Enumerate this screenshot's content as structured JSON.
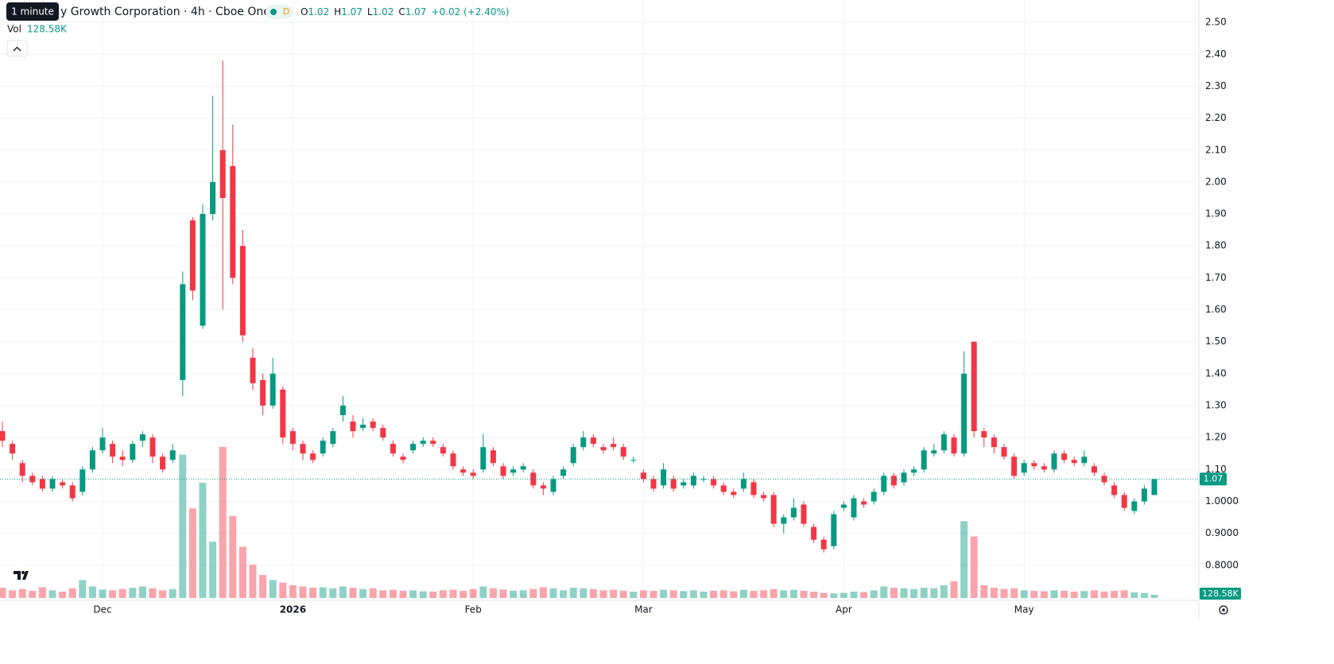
{
  "chart_data": {
    "type": "candlestick",
    "title": "y Growth Corporation · 4h · Cboe One",
    "tooltip": "1 minute",
    "badge": "D",
    "legend": {
      "o_label": "O",
      "o": 1.02,
      "h_label": "H",
      "h": 1.07,
      "l_label": "L",
      "l": 1.02,
      "c_label": "C",
      "c": 1.07,
      "change": "+0.02 (+2.40%)"
    },
    "volume_label": "Vol",
    "volume_text": "128.58K",
    "last_price": 1.07,
    "volume_tag": "128.58K",
    "up_color": "#089981",
    "down_color": "#f23645",
    "grid": true,
    "ylim": [
      0.69,
      2.57
    ],
    "yticks": [
      {
        "value": 2.5,
        "label": "2.50"
      },
      {
        "value": 2.4,
        "label": "2.40"
      },
      {
        "value": 2.3,
        "label": "2.30"
      },
      {
        "value": 2.2,
        "label": "2.20"
      },
      {
        "value": 2.1,
        "label": "2.10"
      },
      {
        "value": 2.0,
        "label": "2.00"
      },
      {
        "value": 1.9,
        "label": "1.90"
      },
      {
        "value": 1.8,
        "label": "1.80"
      },
      {
        "value": 1.7,
        "label": "1.70"
      },
      {
        "value": 1.6,
        "label": "1.60"
      },
      {
        "value": 1.5,
        "label": "1.50"
      },
      {
        "value": 1.4,
        "label": "1.40"
      },
      {
        "value": 1.3,
        "label": "1.30"
      },
      {
        "value": 1.2,
        "label": "1.20"
      },
      {
        "value": 1.1,
        "label": "1.10"
      },
      {
        "value": 1.0,
        "label": "1.0000"
      },
      {
        "value": 0.9,
        "label": "0.9000"
      },
      {
        "value": 0.8,
        "label": "0.8000"
      }
    ],
    "categories": [
      null,
      null,
      null,
      null,
      null,
      null,
      null,
      null,
      null,
      null,
      "Dec",
      null,
      null,
      null,
      null,
      null,
      null,
      null,
      null,
      null,
      null,
      null,
      null,
      null,
      null,
      null,
      null,
      null,
      null,
      "2026",
      null,
      null,
      null,
      null,
      null,
      null,
      null,
      null,
      null,
      null,
      null,
      null,
      null,
      null,
      null,
      null,
      null,
      "Feb",
      null,
      null,
      null,
      null,
      null,
      null,
      null,
      null,
      null,
      null,
      null,
      null,
      null,
      null,
      null,
      null,
      "Mar",
      null,
      null,
      null,
      null,
      null,
      null,
      null,
      null,
      null,
      null,
      null,
      null,
      null,
      null,
      null,
      null,
      null,
      null,
      null,
      "Apr",
      null,
      null,
      null,
      null,
      null,
      null,
      null,
      null,
      null,
      null,
      null,
      null,
      null,
      null,
      null,
      null,
      null,
      "May",
      null,
      null,
      null,
      null,
      null,
      null,
      null,
      null,
      null,
      null,
      null,
      null,
      null
    ],
    "open": [
      1.22,
      1.18,
      1.12,
      1.08,
      1.07,
      1.04,
      1.06,
      1.05,
      1.03,
      1.1,
      1.16,
      1.18,
      1.14,
      1.13,
      1.19,
      1.2,
      1.14,
      1.13,
      1.38,
      1.88,
      1.55,
      1.9,
      2.1,
      2.05,
      1.8,
      1.45,
      1.38,
      1.3,
      1.35,
      1.22,
      1.18,
      1.15,
      1.15,
      1.18,
      1.27,
      1.25,
      1.23,
      1.25,
      1.23,
      1.18,
      1.14,
      1.16,
      1.18,
      1.19,
      1.17,
      1.15,
      1.1,
      1.09,
      1.1,
      1.16,
      1.11,
      1.09,
      1.1,
      1.09,
      1.05,
      1.03,
      1.08,
      1.12,
      1.17,
      1.2,
      1.17,
      1.18,
      1.17,
      1.13,
      1.09,
      1.07,
      1.05,
      1.07,
      1.05,
      1.05,
      1.07,
      1.07,
      1.05,
      1.03,
      1.04,
      1.06,
      1.02,
      1.02,
      0.93,
      0.95,
      0.99,
      0.92,
      0.88,
      0.86,
      0.98,
      0.95,
      1.0,
      1.0,
      1.03,
      1.08,
      1.06,
      1.09,
      1.1,
      1.15,
      1.16,
      1.2,
      1.15,
      1.5,
      1.22,
      1.2,
      1.17,
      1.14,
      1.09,
      1.12,
      1.11,
      1.1,
      1.15,
      1.13,
      1.12,
      1.11,
      1.08,
      1.05,
      1.02,
      0.97,
      1.0,
      1.02
    ],
    "high": [
      1.25,
      1.19,
      1.13,
      1.09,
      1.08,
      1.08,
      1.07,
      1.06,
      1.11,
      1.17,
      1.23,
      1.19,
      1.16,
      1.19,
      1.22,
      1.21,
      1.15,
      1.18,
      1.72,
      1.89,
      1.93,
      2.27,
      2.38,
      2.18,
      1.85,
      1.48,
      1.4,
      1.45,
      1.36,
      1.23,
      1.19,
      1.16,
      1.2,
      1.23,
      1.33,
      1.27,
      1.26,
      1.26,
      1.24,
      1.19,
      1.15,
      1.19,
      1.2,
      1.2,
      1.18,
      1.16,
      1.11,
      1.1,
      1.21,
      1.17,
      1.12,
      1.11,
      1.12,
      1.1,
      1.06,
      1.08,
      1.11,
      1.18,
      1.22,
      1.21,
      1.18,
      1.2,
      1.18,
      1.14,
      1.1,
      1.08,
      1.12,
      1.08,
      1.07,
      1.09,
      1.08,
      1.08,
      1.06,
      1.04,
      1.09,
      1.07,
      1.03,
      1.03,
      0.96,
      1.01,
      1.0,
      0.93,
      0.89,
      0.97,
      1.0,
      1.02,
      1.01,
      1.04,
      1.09,
      1.09,
      1.1,
      1.11,
      1.17,
      1.18,
      1.22,
      1.21,
      1.47,
      1.5,
      1.23,
      1.21,
      1.18,
      1.15,
      1.13,
      1.13,
      1.12,
      1.16,
      1.16,
      1.14,
      1.16,
      1.12,
      1.09,
      1.06,
      1.03,
      1.01,
      1.05,
      1.07
    ],
    "low": [
      1.17,
      1.13,
      1.06,
      1.05,
      1.03,
      1.03,
      1.04,
      1.0,
      1.02,
      1.09,
      1.15,
      1.12,
      1.11,
      1.12,
      1.17,
      1.12,
      1.09,
      1.12,
      1.33,
      1.63,
      1.54,
      1.88,
      1.6,
      1.68,
      1.5,
      1.35,
      1.27,
      1.29,
      1.18,
      1.16,
      1.13,
      1.12,
      1.14,
      1.17,
      1.25,
      1.2,
      1.22,
      1.22,
      1.19,
      1.14,
      1.12,
      1.15,
      1.17,
      1.17,
      1.14,
      1.1,
      1.08,
      1.07,
      1.09,
      1.11,
      1.07,
      1.08,
      1.09,
      1.04,
      1.02,
      1.02,
      1.07,
      1.11,
      1.16,
      1.17,
      1.15,
      1.16,
      1.13,
      1.12,
      1.06,
      1.03,
      1.04,
      1.03,
      1.04,
      1.04,
      1.06,
      1.04,
      1.02,
      1.01,
      1.03,
      1.01,
      1.0,
      0.92,
      0.9,
      0.94,
      0.92,
      0.87,
      0.84,
      0.85,
      0.97,
      0.94,
      0.98,
      0.99,
      1.02,
      1.04,
      1.05,
      1.08,
      1.09,
      1.14,
      1.15,
      1.14,
      1.14,
      1.2,
      1.17,
      1.15,
      1.13,
      1.07,
      1.08,
      1.1,
      1.09,
      1.09,
      1.12,
      1.11,
      1.11,
      1.08,
      1.05,
      1.01,
      0.97,
      0.96,
      0.99,
      1.02
    ],
    "close": [
      1.19,
      1.15,
      1.08,
      1.06,
      1.04,
      1.07,
      1.05,
      1.01,
      1.1,
      1.16,
      1.2,
      1.14,
      1.13,
      1.18,
      1.21,
      1.14,
      1.1,
      1.16,
      1.68,
      1.66,
      1.9,
      2.0,
      1.95,
      1.7,
      1.52,
      1.37,
      1.3,
      1.4,
      1.2,
      1.18,
      1.15,
      1.13,
      1.19,
      1.22,
      1.3,
      1.22,
      1.24,
      1.23,
      1.2,
      1.15,
      1.13,
      1.18,
      1.19,
      1.18,
      1.15,
      1.11,
      1.09,
      1.08,
      1.17,
      1.12,
      1.08,
      1.1,
      1.11,
      1.05,
      1.04,
      1.07,
      1.1,
      1.17,
      1.2,
      1.18,
      1.16,
      1.17,
      1.14,
      1.13,
      1.07,
      1.04,
      1.1,
      1.04,
      1.06,
      1.08,
      1.07,
      1.05,
      1.03,
      1.02,
      1.07,
      1.02,
      1.01,
      0.93,
      0.95,
      0.98,
      0.93,
      0.88,
      0.85,
      0.96,
      0.99,
      1.01,
      0.99,
      1.03,
      1.08,
      1.05,
      1.09,
      1.1,
      1.16,
      1.16,
      1.21,
      1.15,
      1.4,
      1.22,
      1.2,
      1.17,
      1.14,
      1.08,
      1.12,
      1.11,
      1.1,
      1.15,
      1.13,
      1.12,
      1.14,
      1.09,
      1.06,
      1.02,
      0.98,
      1.0,
      1.04,
      1.07
    ],
    "volume": [
      400000,
      300000,
      350000,
      280000,
      420000,
      300000,
      250000,
      380000,
      700000,
      450000,
      330000,
      300000,
      350000,
      400000,
      450000,
      380000,
      300000,
      350000,
      5600000,
      3500000,
      4500000,
      2200000,
      5900000,
      3200000,
      2000000,
      1300000,
      900000,
      700000,
      600000,
      500000,
      450000,
      400000,
      420000,
      380000,
      450000,
      400000,
      350000,
      380000,
      300000,
      320000,
      280000,
      300000,
      260000,
      250000,
      300000,
      320000,
      280000,
      350000,
      450000,
      380000,
      330000,
      280000,
      300000,
      350000,
      420000,
      380000,
      300000,
      400000,
      380000,
      350000,
      300000,
      320000,
      280000,
      250000,
      300000,
      280000,
      320000,
      300000,
      270000,
      300000,
      250000,
      280000,
      300000,
      260000,
      320000,
      280000,
      300000,
      350000,
      300000,
      320000,
      280000,
      250000,
      200000,
      180000,
      200000,
      250000,
      230000,
      300000,
      450000,
      400000,
      380000,
      350000,
      400000,
      380000,
      500000,
      650000,
      3000000,
      2400000,
      500000,
      400000,
      350000,
      380000,
      300000,
      280000,
      260000,
      300000,
      280000,
      250000,
      270000,
      300000,
      250000,
      280000,
      300000,
      220000,
      200000,
      128580
    ]
  }
}
